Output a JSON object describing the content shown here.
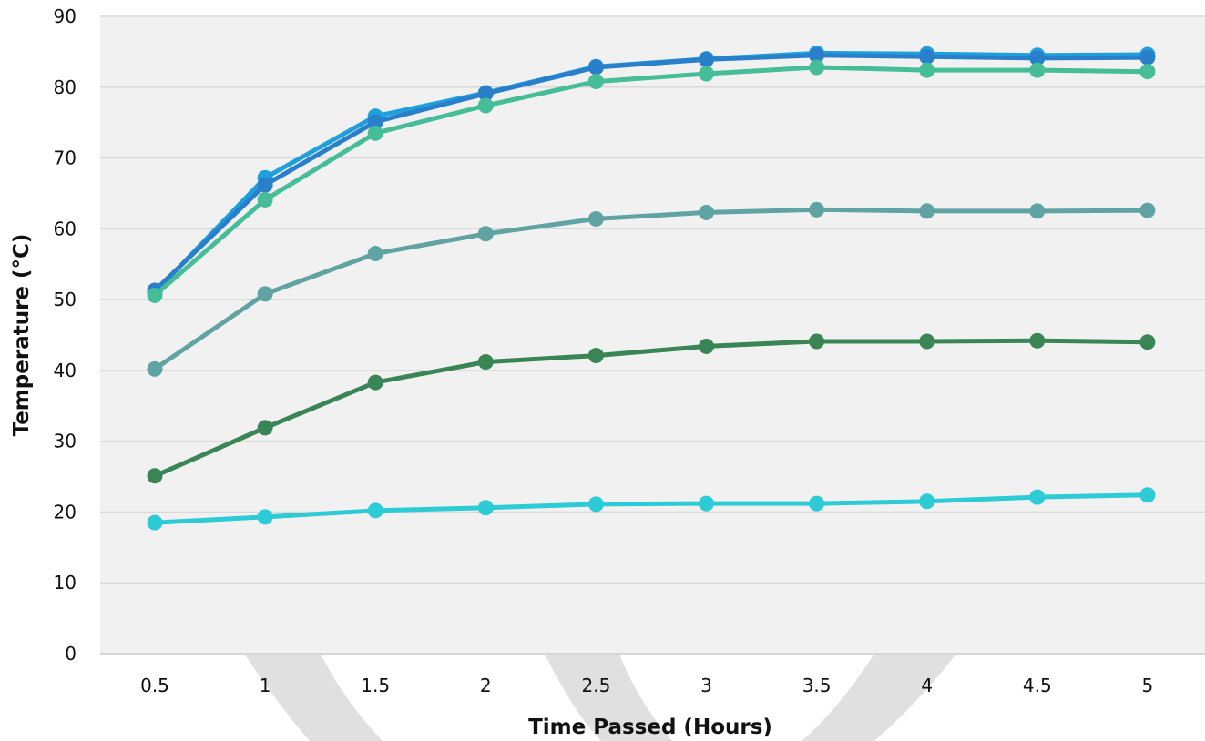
{
  "chart_data": {
    "type": "line",
    "title": "",
    "xlabel": "Time Passed (Hours)",
    "ylabel": "Temperature (°C)",
    "ylim": [
      0,
      90
    ],
    "yticks": [
      "0",
      "10",
      "20",
      "30",
      "40",
      "50",
      "60",
      "70",
      "80",
      "90"
    ],
    "categories": [
      "0.5",
      "1",
      "1.5",
      "2",
      "2.5",
      "3",
      "3.5",
      "4",
      "4.5",
      "5"
    ],
    "grid": "horizontal",
    "plot_background": "#f1f1f1",
    "series": [
      {
        "color": "#1fa0dc",
        "values": [
          51.0,
          67.2,
          75.9,
          79.2,
          82.9,
          84.0,
          84.8,
          84.7,
          84.5,
          84.6
        ]
      },
      {
        "color": "#2a7fcb",
        "values": [
          51.3,
          66.2,
          75.1,
          79.1,
          82.8,
          83.9,
          84.5,
          84.3,
          84.1,
          84.2
        ]
      },
      {
        "color": "#45bd96",
        "values": [
          50.6,
          64.1,
          73.5,
          77.4,
          80.8,
          81.9,
          82.8,
          82.4,
          82.4,
          82.2
        ]
      },
      {
        "color": "#5fa3a2",
        "values": [
          40.2,
          50.8,
          56.5,
          59.3,
          61.4,
          62.3,
          62.7,
          62.5,
          62.5,
          62.6
        ]
      },
      {
        "color": "#3a8556",
        "values": [
          25.1,
          31.9,
          38.3,
          41.2,
          42.1,
          43.4,
          44.1,
          44.1,
          44.2,
          44.0
        ]
      },
      {
        "color": "#2ccbd6",
        "values": [
          18.5,
          19.3,
          20.2,
          20.6,
          21.1,
          21.2,
          21.2,
          21.5,
          22.1,
          22.4
        ]
      }
    ]
  }
}
